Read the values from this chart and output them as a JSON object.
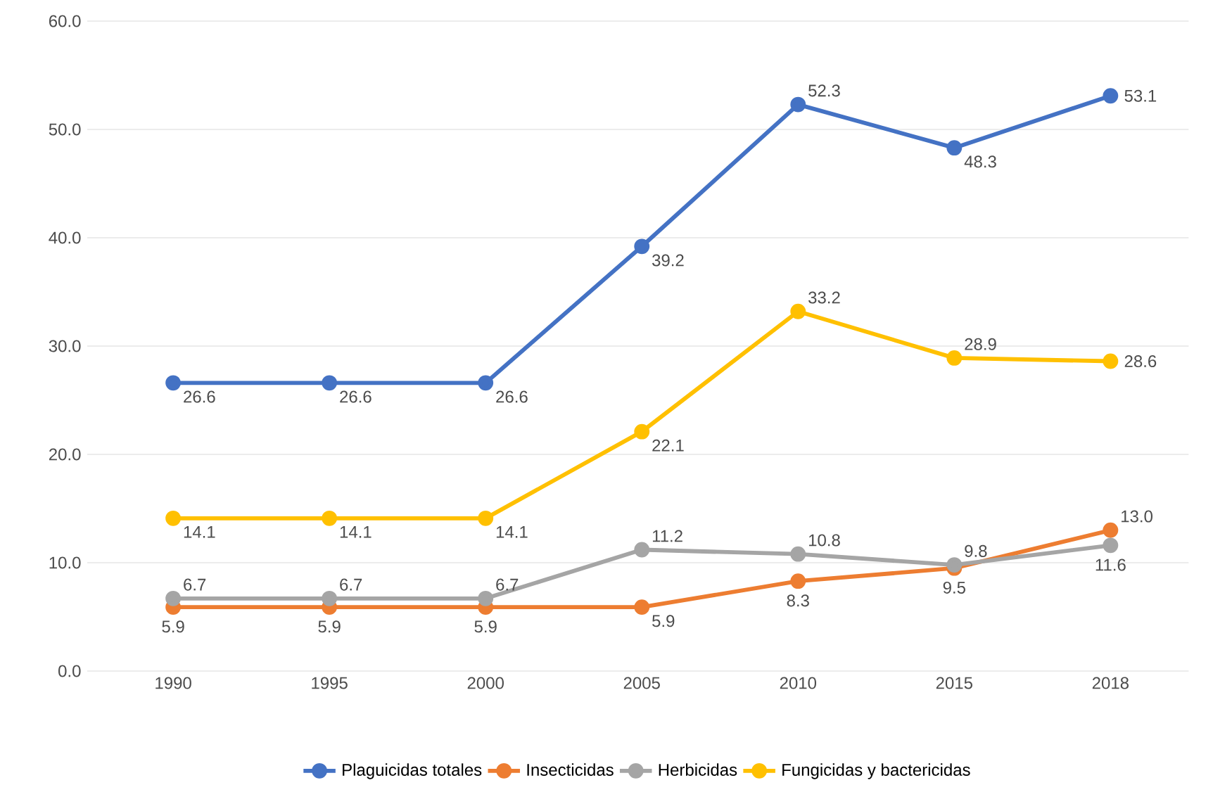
{
  "chart_data": {
    "type": "line",
    "categories": [
      "1990",
      "1995",
      "2000",
      "2005",
      "2010",
      "2015",
      "2018"
    ],
    "ylim": [
      0,
      60
    ],
    "yticks": [
      {
        "value": 0,
        "label": "0.0"
      },
      {
        "value": 10,
        "label": "10.0"
      },
      {
        "value": 20,
        "label": "20.0"
      },
      {
        "value": 30,
        "label": "30.0"
      },
      {
        "value": 40,
        "label": "40.0"
      },
      {
        "value": 50,
        "label": "50.0"
      },
      {
        "value": 60,
        "label": "60.0"
      }
    ],
    "grid": "y",
    "legend": "bottom",
    "marker": "circle",
    "data_labels": true,
    "series": [
      {
        "name": "Plaguicidas totales",
        "color": "#4472c4",
        "values": [
          26.6,
          26.6,
          26.6,
          39.2,
          52.3,
          48.3,
          53.1
        ],
        "value_labels": [
          "26.6",
          "26.6",
          "26.6",
          "39.2",
          "52.3",
          "48.3",
          "53.1"
        ]
      },
      {
        "name": "Insecticidas",
        "color": "#ed7d31",
        "values": [
          5.9,
          5.9,
          5.9,
          5.9,
          8.3,
          9.5,
          13.0
        ],
        "value_labels": [
          "5.9",
          "5.9",
          "5.9",
          "5.9",
          "8.3",
          "9.5",
          "13.0"
        ]
      },
      {
        "name": "Herbicidas",
        "color": "#a5a5a5",
        "values": [
          6.7,
          6.7,
          6.7,
          11.2,
          10.8,
          9.8,
          11.6
        ],
        "value_labels": [
          "6.7",
          "6.7",
          "6.7",
          "11.2",
          "10.8",
          "9.8",
          "11.6"
        ]
      },
      {
        "name": "Fungicidas y bactericidas",
        "color": "#ffc000",
        "values": [
          14.1,
          14.1,
          14.1,
          22.1,
          33.2,
          28.9,
          28.6
        ],
        "value_labels": [
          "14.1",
          "14.1",
          "14.1",
          "22.1",
          "33.2",
          "28.9",
          "28.6"
        ]
      }
    ]
  }
}
